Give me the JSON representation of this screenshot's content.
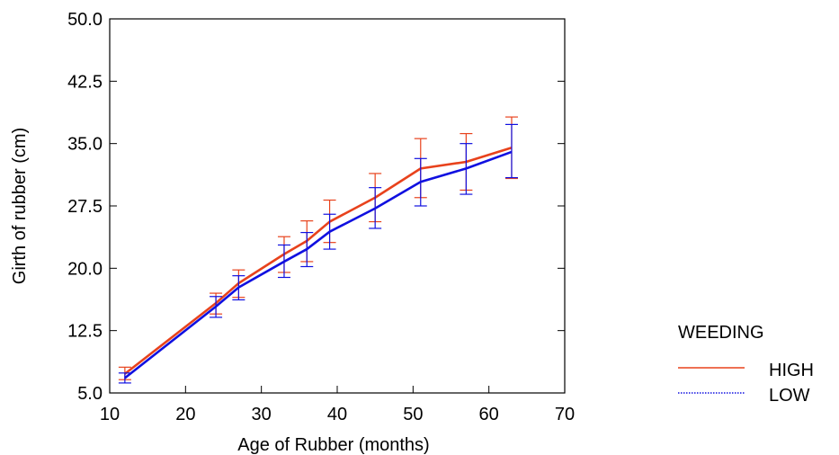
{
  "chart_data": {
    "type": "line",
    "title": "",
    "xlabel": "Age of Rubber (months)",
    "ylabel": "Girth of rubber (cm)",
    "xlim": [
      10,
      70
    ],
    "ylim": [
      5.0,
      50.0
    ],
    "x_ticks": [
      10,
      20,
      30,
      40,
      50,
      60,
      70
    ],
    "y_ticks": [
      5.0,
      12.5,
      20.0,
      27.5,
      35.0,
      42.5,
      50.0
    ],
    "x_tick_labels": [
      "10",
      "20",
      "30",
      "40",
      "50",
      "60",
      "70"
    ],
    "y_tick_labels": [
      "5.0",
      "12.5",
      "20.0",
      "27.5",
      "35.0",
      "42.5",
      "50.0"
    ],
    "grid": false,
    "legend": {
      "title": "WEEDING",
      "placement": "right"
    },
    "series": [
      {
        "name": "HIGH",
        "color": "#e8421c",
        "line_style": "solid",
        "x": [
          12,
          24,
          27,
          33,
          36,
          39,
          45,
          51,
          57,
          63
        ],
        "y": [
          7.3,
          15.8,
          18.2,
          21.7,
          23.3,
          25.6,
          28.5,
          32.0,
          32.8,
          34.5
        ],
        "error_low": [
          6.6,
          14.5,
          16.5,
          19.5,
          20.8,
          23.1,
          25.6,
          28.5,
          29.4,
          30.8
        ],
        "error_high": [
          8.1,
          17.0,
          19.8,
          23.8,
          25.7,
          28.2,
          31.4,
          35.6,
          36.2,
          38.2
        ]
      },
      {
        "name": "LOW",
        "color": "#1010e0",
        "line_style": "dotted",
        "x": [
          12,
          24,
          27,
          33,
          36,
          39,
          45,
          51,
          57,
          63
        ],
        "y": [
          6.8,
          15.4,
          17.7,
          20.8,
          22.3,
          24.4,
          27.2,
          30.4,
          32.0,
          34.0
        ],
        "error_low": [
          6.2,
          14.1,
          16.2,
          18.9,
          20.2,
          22.3,
          24.8,
          27.5,
          28.9,
          30.9
        ],
        "error_high": [
          7.4,
          16.6,
          19.1,
          22.8,
          24.3,
          26.5,
          29.7,
          33.2,
          35.0,
          37.3
        ]
      }
    ]
  }
}
